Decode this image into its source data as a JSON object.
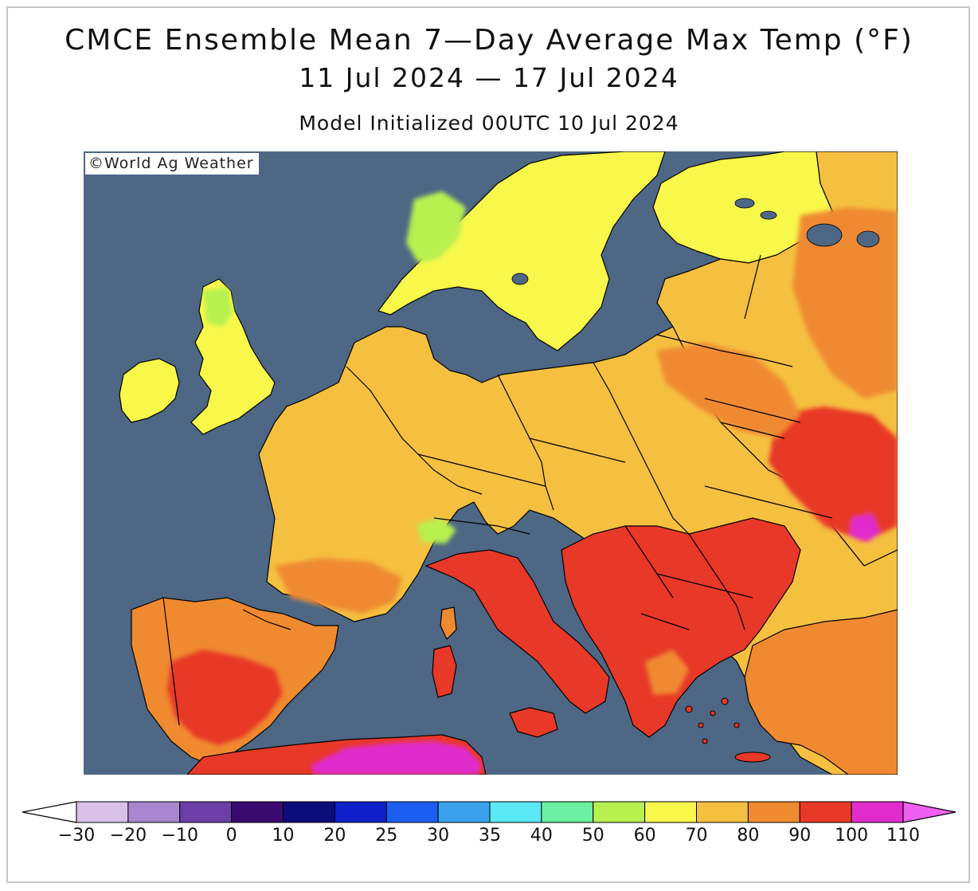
{
  "title": "CMCE Ensemble Mean 7—Day Average Max Temp (°F)",
  "date_range": "11 Jul 2024 — 17 Jul 2024",
  "model_init": "Model Initialized 00UTC 10 Jul 2024",
  "credit": "©World Ag Weather",
  "colors": {
    "ocean": "#4d6785",
    "coastline": "#000000",
    "border": "#000000"
  },
  "legend": {
    "ticks": [
      "−30",
      "−20",
      "−10",
      "0",
      "10",
      "20",
      "25",
      "30",
      "35",
      "40",
      "50",
      "60",
      "70",
      "80",
      "90",
      "100",
      "110"
    ],
    "bins": [
      {
        "lower": -30,
        "upper": -20,
        "color": "#d8c0e8"
      },
      {
        "lower": -20,
        "upper": -10,
        "color": "#a886d0"
      },
      {
        "lower": -10,
        "upper": 0,
        "color": "#6b3ea8"
      },
      {
        "lower": 0,
        "upper": 10,
        "color": "#3a0a70"
      },
      {
        "lower": 10,
        "upper": 20,
        "color": "#0c0c7c"
      },
      {
        "lower": 20,
        "upper": 25,
        "color": "#0f20c8"
      },
      {
        "lower": 25,
        "upper": 30,
        "color": "#1c5ef0"
      },
      {
        "lower": 30,
        "upper": 35,
        "color": "#3aa0ee"
      },
      {
        "lower": 35,
        "upper": 40,
        "color": "#5ae8f5"
      },
      {
        "lower": 40,
        "upper": 50,
        "color": "#6af0a0"
      },
      {
        "lower": 50,
        "upper": 60,
        "color": "#b8f050"
      },
      {
        "lower": 60,
        "upper": 70,
        "color": "#f8f84a"
      },
      {
        "lower": 70,
        "upper": 80,
        "color": "#f5c040"
      },
      {
        "lower": 80,
        "upper": 90,
        "color": "#f08a30"
      },
      {
        "lower": 90,
        "upper": 100,
        "color": "#e83828"
      },
      {
        "lower": 100,
        "upper": 110,
        "color": "#e02ccc"
      }
    ],
    "under_color": "#ffffff",
    "over_color": "#f060f0"
  },
  "regions": [
    {
      "name": "Ireland",
      "temp_band": "60-70",
      "color": "#f8f84a"
    },
    {
      "name": "United Kingdom",
      "temp_band": "60-70",
      "color": "#f8f84a"
    },
    {
      "name": "Scottish Highlands",
      "temp_band": "50-60",
      "color": "#b8f050"
    },
    {
      "name": "Norway mountains",
      "temp_band": "50-60",
      "color": "#b8f050"
    },
    {
      "name": "Scandinavia",
      "temp_band": "60-70",
      "color": "#f8f84a"
    },
    {
      "name": "Finland",
      "temp_band": "60-70",
      "color": "#f8f84a"
    },
    {
      "name": "France",
      "temp_band": "70-80",
      "color": "#f5c040"
    },
    {
      "name": "Germany",
      "temp_band": "70-80",
      "color": "#f5c040"
    },
    {
      "name": "Poland",
      "temp_band": "70-80",
      "color": "#f5c040"
    },
    {
      "name": "Baltics",
      "temp_band": "70-80",
      "color": "#f5c040"
    },
    {
      "name": "Ukraine",
      "temp_band": "80-100",
      "color": "#f08a30"
    },
    {
      "name": "Iberia interior",
      "temp_band": "90-100",
      "color": "#e83828"
    },
    {
      "name": "Italy",
      "temp_band": "90-100",
      "color": "#e83828"
    },
    {
      "name": "Balkans",
      "temp_band": "90-100",
      "color": "#e83828"
    },
    {
      "name": "Romania",
      "temp_band": "90-100",
      "color": "#e83828"
    },
    {
      "name": "Turkey",
      "temp_band": "80-100",
      "color": "#f08a30"
    },
    {
      "name": "North Africa",
      "temp_band": "100-110",
      "color": "#e02ccc"
    }
  ]
}
